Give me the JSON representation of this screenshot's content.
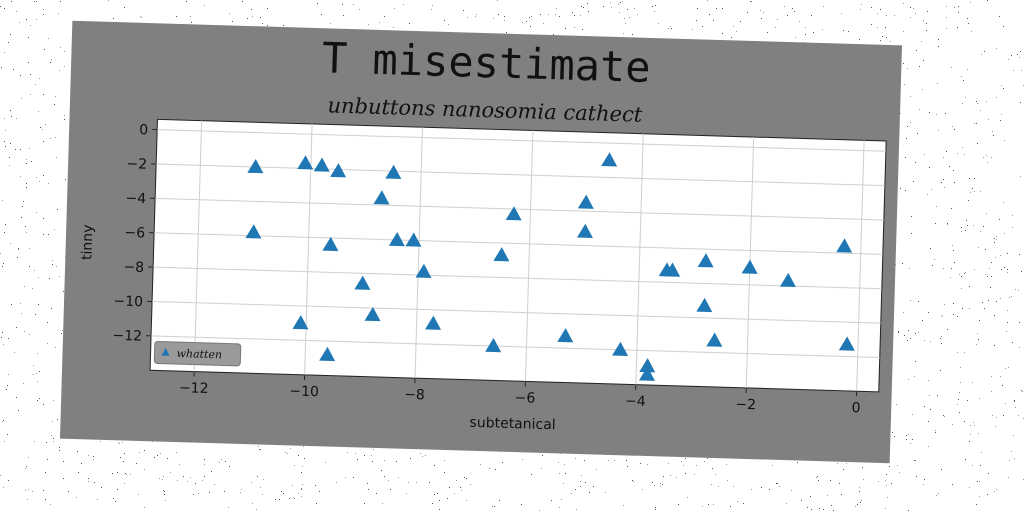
{
  "chart_data": {
    "type": "scatter",
    "title": "T misestimate",
    "subtitle": "unbuttons nanosomia cathect",
    "xlabel": "subtetanical",
    "ylabel": "tinny",
    "xlim": [
      -12.8,
      0.4
    ],
    "ylim": [
      -14.0,
      0.6
    ],
    "xticks": [
      -12,
      -10,
      -8,
      -6,
      -4,
      -2,
      0
    ],
    "yticks": [
      0,
      -2,
      -4,
      -6,
      -8,
      -10,
      -12
    ],
    "grid": true,
    "legend_position": "lower-left",
    "marker": "triangle",
    "color": "#1f77b4",
    "series": [
      {
        "name": "whatten",
        "points": [
          [
            -11.0,
            -2.0
          ],
          [
            -10.1,
            -1.7
          ],
          [
            -9.8,
            -1.8
          ],
          [
            -9.5,
            -2.1
          ],
          [
            -8.5,
            -2.1
          ],
          [
            -8.7,
            -3.6
          ],
          [
            -11.0,
            -5.8
          ],
          [
            -9.6,
            -6.4
          ],
          [
            -8.4,
            -6.0
          ],
          [
            -8.1,
            -6.0
          ],
          [
            -7.9,
            -7.8
          ],
          [
            -9.0,
            -8.6
          ],
          [
            -8.8,
            -10.4
          ],
          [
            -7.7,
            -10.8
          ],
          [
            -10.1,
            -11.0
          ],
          [
            -9.6,
            -12.8
          ],
          [
            -6.3,
            -4.3
          ],
          [
            -6.5,
            -6.7
          ],
          [
            -6.6,
            -12.0
          ],
          [
            -5.3,
            -11.3
          ],
          [
            -5.0,
            -3.5
          ],
          [
            -5.0,
            -5.2
          ],
          [
            -4.6,
            -1.0
          ],
          [
            -4.3,
            -12.0
          ],
          [
            -3.8,
            -12.9
          ],
          [
            -3.8,
            -13.4
          ],
          [
            -3.5,
            -7.3
          ],
          [
            -3.4,
            -7.3
          ],
          [
            -2.8,
            -6.7
          ],
          [
            -2.8,
            -9.3
          ],
          [
            -2.6,
            -11.3
          ],
          [
            -2.0,
            -7.0
          ],
          [
            -1.3,
            -7.7
          ],
          [
            -0.3,
            -5.6
          ],
          [
            -0.2,
            -11.3
          ]
        ]
      }
    ]
  }
}
